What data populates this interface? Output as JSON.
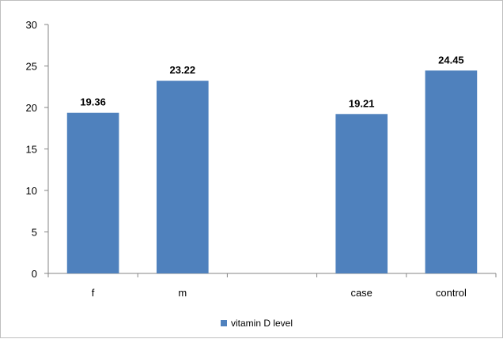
{
  "chart_data": {
    "type": "bar",
    "categories": [
      "f",
      "m",
      "",
      "case",
      "control"
    ],
    "series": [
      {
        "name": "vitamin D level",
        "values": [
          19.36,
          23.22,
          null,
          19.21,
          24.45
        ]
      }
    ],
    "data_labels": [
      "19.36",
      "23.22",
      "",
      "19.21",
      "24.45"
    ],
    "ylim": [
      0,
      30
    ],
    "yticks": [
      0,
      5,
      10,
      15,
      20,
      25,
      30
    ],
    "grid": false,
    "legend_position": "bottom",
    "colors": {
      "bar": "#4F81BD",
      "axis": "#868686"
    }
  }
}
